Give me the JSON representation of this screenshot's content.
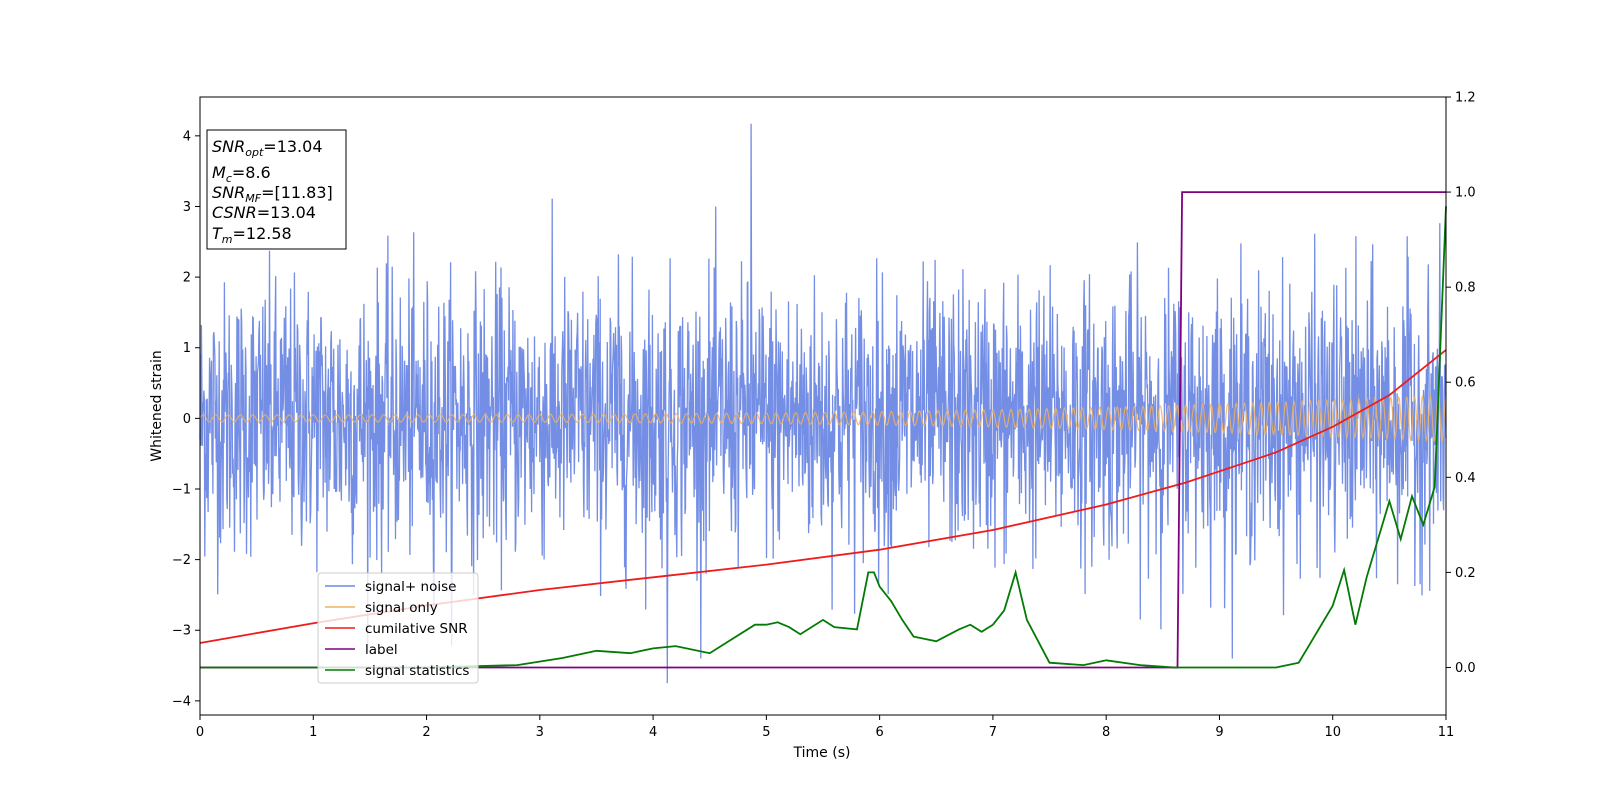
{
  "chart_data": {
    "type": "line",
    "xlabel": "Time (s)",
    "ylabel": "Whitened strain",
    "xlim": [
      0,
      11
    ],
    "ylim": [
      -4.2,
      4.55
    ],
    "y2lim": [
      -0.1,
      1.2
    ],
    "xticks": [
      "0",
      "1",
      "2",
      "3",
      "4",
      "5",
      "6",
      "7",
      "8",
      "9",
      "10",
      "11"
    ],
    "yticks": [
      "−4",
      "−3",
      "−2",
      "−1",
      "0",
      "1",
      "2",
      "3",
      "4"
    ],
    "y2ticks": [
      "0.0",
      "0.2",
      "0.4",
      "0.6",
      "0.8",
      "1.0",
      "1.2"
    ],
    "info_box": {
      "snr_opt": "=13.04",
      "mc": "=8.6",
      "snr_mf": "=[11.83]",
      "csnr": "=13.04",
      "tm": "=12.58"
    },
    "legend": {
      "placement": "lower-left",
      "entries": [
        "signal+ noise",
        "signal only",
        "cumilative SNR",
        "label",
        "signal statistics"
      ]
    },
    "colors": {
      "noise": "#6b88e3",
      "signal": "#f0b060",
      "cumulative_snr": "#ee1c1c",
      "label": "#800080",
      "statistics": "#037a03"
    },
    "series": [
      {
        "name": "signal+ noise",
        "axis": "left",
        "description_values": "whitened strain noise, amplitude ~N(0,1), spikes up to 4.17 and down to -3.75",
        "noise_std": 1.0,
        "max_value": 4.17,
        "min_value": -3.75
      },
      {
        "name": "signal only",
        "axis": "left",
        "amplitude_start": 0.05,
        "amplitude_end": 0.33
      },
      {
        "name": "cumilative SNR",
        "axis": "left",
        "x": [
          0,
          1,
          2,
          3,
          4,
          5,
          6,
          7,
          8,
          8.7,
          9,
          9.5,
          10,
          10.5,
          11
        ],
        "values": [
          -3.18,
          -2.9,
          -2.65,
          -2.43,
          -2.25,
          -2.07,
          -1.86,
          -1.58,
          -1.22,
          -0.91,
          -0.75,
          -0.48,
          -0.12,
          0.33,
          0.97
        ]
      },
      {
        "name": "label",
        "axis": "right",
        "x": [
          0,
          8.63,
          8.67,
          11
        ],
        "values": [
          0.0,
          0.0,
          1.0,
          1.0
        ]
      },
      {
        "name": "signal statistics",
        "axis": "right",
        "x": [
          0,
          1,
          2,
          2.8,
          3.2,
          3.5,
          3.8,
          4.0,
          4.2,
          4.5,
          4.7,
          4.9,
          5.0,
          5.1,
          5.2,
          5.3,
          5.5,
          5.6,
          5.8,
          5.9,
          5.95,
          6.0,
          6.1,
          6.2,
          6.3,
          6.5,
          6.7,
          6.8,
          6.9,
          7.0,
          7.1,
          7.2,
          7.3,
          7.5,
          7.8,
          8.0,
          8.3,
          8.6,
          9.0,
          9.5,
          9.7,
          9.8,
          10.0,
          10.1,
          10.2,
          10.3,
          10.5,
          10.6,
          10.7,
          10.8,
          10.9,
          11.0
        ],
        "values": [
          0.0,
          0.0,
          0.0,
          0.005,
          0.02,
          0.035,
          0.03,
          0.04,
          0.045,
          0.03,
          0.06,
          0.09,
          0.09,
          0.095,
          0.085,
          0.07,
          0.1,
          0.085,
          0.08,
          0.2,
          0.2,
          0.17,
          0.14,
          0.1,
          0.065,
          0.055,
          0.08,
          0.09,
          0.075,
          0.09,
          0.12,
          0.2,
          0.1,
          0.01,
          0.005,
          0.015,
          0.005,
          0.0,
          0.0,
          0.0,
          0.01,
          0.05,
          0.13,
          0.205,
          0.09,
          0.19,
          0.35,
          0.27,
          0.36,
          0.3,
          0.38,
          0.97
        ]
      }
    ]
  }
}
